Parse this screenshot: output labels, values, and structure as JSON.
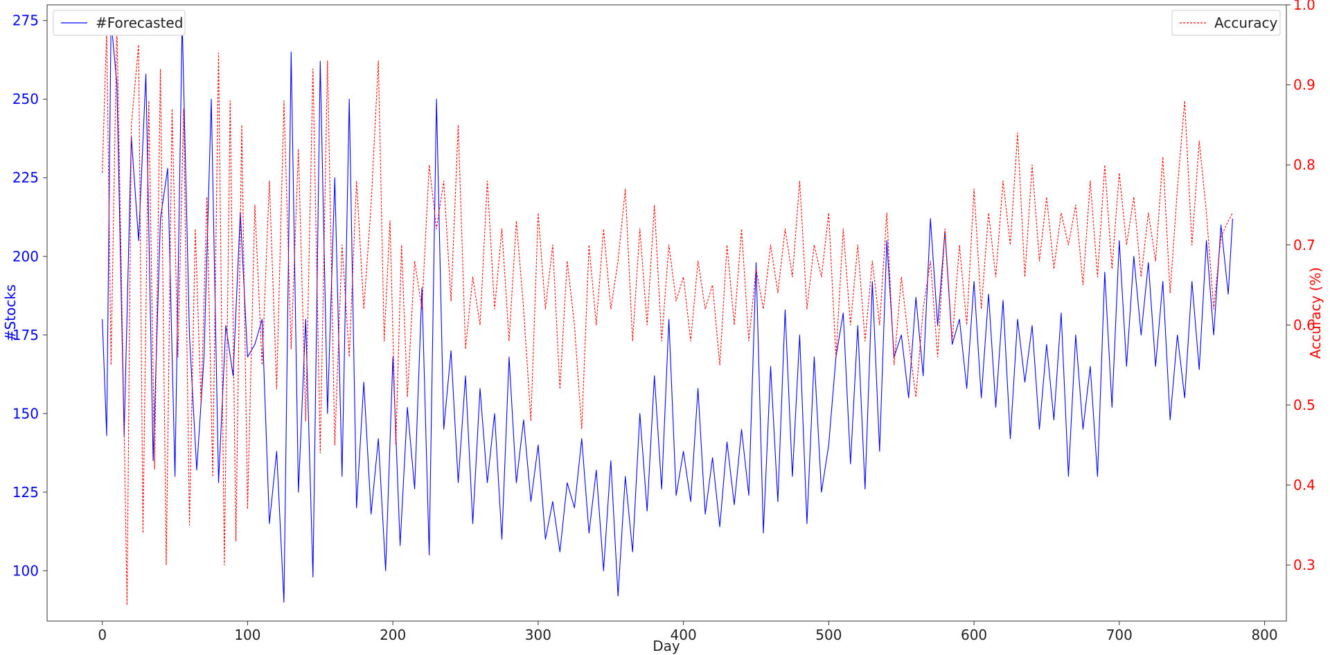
{
  "chart_data": {
    "type": "line",
    "title": "",
    "xlabel": "Day",
    "ylabel_left": "#Stocks",
    "ylabel_right": "Accuracy (%)",
    "xlim": [
      -38,
      815
    ],
    "ylim_left": [
      84,
      280
    ],
    "ylim_right": [
      0.23,
      1.0
    ],
    "x_ticks": [
      0,
      100,
      200,
      300,
      400,
      500,
      600,
      700,
      800
    ],
    "y_left_ticks": [
      100,
      125,
      150,
      175,
      200,
      225,
      250,
      275
    ],
    "y_right_ticks": [
      0.3,
      0.4,
      0.5,
      0.6,
      0.7,
      0.8,
      0.9,
      1.0
    ],
    "grid": false,
    "series": [
      {
        "name": "#Forecasted",
        "axis": "left",
        "color": "#0000ff",
        "style": "solid",
        "legend_position": "top-left",
        "points": [
          [
            0,
            180
          ],
          [
            3,
            143
          ],
          [
            6,
            275
          ],
          [
            10,
            255
          ],
          [
            15,
            143
          ],
          [
            20,
            238
          ],
          [
            25,
            205
          ],
          [
            30,
            258
          ],
          [
            35,
            135
          ],
          [
            40,
            212
          ],
          [
            45,
            228
          ],
          [
            50,
            130
          ],
          [
            55,
            275
          ],
          [
            60,
            175
          ],
          [
            65,
            132
          ],
          [
            70,
            168
          ],
          [
            75,
            250
          ],
          [
            80,
            128
          ],
          [
            85,
            178
          ],
          [
            90,
            162
          ],
          [
            95,
            214
          ],
          [
            100,
            168
          ],
          [
            105,
            172
          ],
          [
            110,
            180
          ],
          [
            115,
            115
          ],
          [
            120,
            138
          ],
          [
            125,
            90
          ],
          [
            130,
            265
          ],
          [
            135,
            125
          ],
          [
            140,
            180
          ],
          [
            145,
            98
          ],
          [
            150,
            262
          ],
          [
            155,
            150
          ],
          [
            160,
            225
          ],
          [
            165,
            130
          ],
          [
            170,
            250
          ],
          [
            175,
            120
          ],
          [
            180,
            160
          ],
          [
            185,
            118
          ],
          [
            190,
            142
          ],
          [
            195,
            100
          ],
          [
            200,
            168
          ],
          [
            205,
            108
          ],
          [
            210,
            152
          ],
          [
            215,
            126
          ],
          [
            220,
            190
          ],
          [
            225,
            105
          ],
          [
            230,
            250
          ],
          [
            235,
            145
          ],
          [
            240,
            170
          ],
          [
            245,
            128
          ],
          [
            250,
            162
          ],
          [
            255,
            115
          ],
          [
            260,
            158
          ],
          [
            265,
            128
          ],
          [
            270,
            150
          ],
          [
            275,
            110
          ],
          [
            280,
            168
          ],
          [
            285,
            128
          ],
          [
            290,
            148
          ],
          [
            295,
            122
          ],
          [
            300,
            140
          ],
          [
            305,
            110
          ],
          [
            310,
            122
          ],
          [
            315,
            106
          ],
          [
            320,
            128
          ],
          [
            325,
            120
          ],
          [
            330,
            142
          ],
          [
            335,
            112
          ],
          [
            340,
            132
          ],
          [
            345,
            100
          ],
          [
            350,
            135
          ],
          [
            355,
            92
          ],
          [
            360,
            130
          ],
          [
            365,
            106
          ],
          [
            370,
            150
          ],
          [
            375,
            119
          ],
          [
            380,
            162
          ],
          [
            385,
            126
          ],
          [
            390,
            180
          ],
          [
            395,
            124
          ],
          [
            400,
            138
          ],
          [
            405,
            122
          ],
          [
            410,
            158
          ],
          [
            415,
            118
          ],
          [
            420,
            136
          ],
          [
            425,
            114
          ],
          [
            430,
            141
          ],
          [
            435,
            121
          ],
          [
            440,
            145
          ],
          [
            445,
            124
          ],
          [
            450,
            198
          ],
          [
            455,
            112
          ],
          [
            460,
            165
          ],
          [
            465,
            122
          ],
          [
            470,
            183
          ],
          [
            475,
            130
          ],
          [
            480,
            175
          ],
          [
            485,
            115
          ],
          [
            490,
            168
          ],
          [
            495,
            125
          ],
          [
            500,
            140
          ],
          [
            505,
            168
          ],
          [
            510,
            182
          ],
          [
            515,
            134
          ],
          [
            520,
            178
          ],
          [
            525,
            126
          ],
          [
            530,
            192
          ],
          [
            535,
            138
          ],
          [
            540,
            205
          ],
          [
            545,
            168
          ],
          [
            550,
            175
          ],
          [
            555,
            155
          ],
          [
            560,
            187
          ],
          [
            565,
            162
          ],
          [
            570,
            212
          ],
          [
            575,
            178
          ],
          [
            580,
            208
          ],
          [
            585,
            172
          ],
          [
            590,
            180
          ],
          [
            595,
            158
          ],
          [
            600,
            192
          ],
          [
            605,
            155
          ],
          [
            610,
            188
          ],
          [
            615,
            152
          ],
          [
            620,
            186
          ],
          [
            625,
            142
          ],
          [
            630,
            180
          ],
          [
            635,
            160
          ],
          [
            640,
            178
          ],
          [
            645,
            145
          ],
          [
            650,
            172
          ],
          [
            655,
            148
          ],
          [
            660,
            182
          ],
          [
            665,
            130
          ],
          [
            670,
            175
          ],
          [
            675,
            145
          ],
          [
            680,
            165
          ],
          [
            685,
            130
          ],
          [
            690,
            195
          ],
          [
            695,
            152
          ],
          [
            700,
            205
          ],
          [
            705,
            165
          ],
          [
            710,
            200
          ],
          [
            715,
            175
          ],
          [
            720,
            198
          ],
          [
            725,
            165
          ],
          [
            730,
            192
          ],
          [
            735,
            148
          ],
          [
            740,
            175
          ],
          [
            745,
            155
          ],
          [
            750,
            192
          ],
          [
            755,
            164
          ],
          [
            760,
            205
          ],
          [
            765,
            175
          ],
          [
            770,
            210
          ],
          [
            775,
            188
          ],
          [
            778,
            212
          ]
        ]
      },
      {
        "name": "Accuracy",
        "axis": "right",
        "color": "#ff0000",
        "style": "dashed",
        "legend_position": "top-right",
        "points": [
          [
            0,
            0.79
          ],
          [
            3,
            0.97
          ],
          [
            6,
            0.55
          ],
          [
            10,
            0.98
          ],
          [
            15,
            0.47
          ],
          [
            17,
            0.25
          ],
          [
            20,
            0.85
          ],
          [
            25,
            0.95
          ],
          [
            28,
            0.34
          ],
          [
            32,
            0.88
          ],
          [
            36,
            0.42
          ],
          [
            40,
            0.92
          ],
          [
            44,
            0.3
          ],
          [
            48,
            0.87
          ],
          [
            52,
            0.56
          ],
          [
            56,
            0.87
          ],
          [
            60,
            0.35
          ],
          [
            64,
            0.72
          ],
          [
            68,
            0.5
          ],
          [
            72,
            0.76
          ],
          [
            76,
            0.41
          ],
          [
            80,
            0.94
          ],
          [
            84,
            0.3
          ],
          [
            88,
            0.88
          ],
          [
            92,
            0.33
          ],
          [
            96,
            0.85
          ],
          [
            100,
            0.37
          ],
          [
            105,
            0.75
          ],
          [
            110,
            0.55
          ],
          [
            115,
            0.78
          ],
          [
            120,
            0.52
          ],
          [
            125,
            0.88
          ],
          [
            130,
            0.57
          ],
          [
            135,
            0.82
          ],
          [
            140,
            0.48
          ],
          [
            145,
            0.92
          ],
          [
            150,
            0.44
          ],
          [
            155,
            0.93
          ],
          [
            160,
            0.45
          ],
          [
            165,
            0.7
          ],
          [
            170,
            0.56
          ],
          [
            175,
            0.78
          ],
          [
            180,
            0.62
          ],
          [
            185,
            0.75
          ],
          [
            190,
            0.93
          ],
          [
            194,
            0.58
          ],
          [
            198,
            0.73
          ],
          [
            202,
            0.45
          ],
          [
            206,
            0.7
          ],
          [
            210,
            0.51
          ],
          [
            215,
            0.68
          ],
          [
            220,
            0.62
          ],
          [
            225,
            0.8
          ],
          [
            230,
            0.72
          ],
          [
            235,
            0.78
          ],
          [
            240,
            0.63
          ],
          [
            245,
            0.85
          ],
          [
            250,
            0.57
          ],
          [
            255,
            0.66
          ],
          [
            260,
            0.6
          ],
          [
            265,
            0.78
          ],
          [
            270,
            0.62
          ],
          [
            275,
            0.72
          ],
          [
            280,
            0.58
          ],
          [
            285,
            0.73
          ],
          [
            290,
            0.62
          ],
          [
            295,
            0.48
          ],
          [
            300,
            0.74
          ],
          [
            305,
            0.62
          ],
          [
            310,
            0.7
          ],
          [
            315,
            0.52
          ],
          [
            320,
            0.68
          ],
          [
            325,
            0.6
          ],
          [
            330,
            0.47
          ],
          [
            335,
            0.7
          ],
          [
            340,
            0.6
          ],
          [
            345,
            0.72
          ],
          [
            350,
            0.62
          ],
          [
            355,
            0.68
          ],
          [
            360,
            0.77
          ],
          [
            365,
            0.58
          ],
          [
            370,
            0.72
          ],
          [
            375,
            0.6
          ],
          [
            380,
            0.75
          ],
          [
            385,
            0.58
          ],
          [
            390,
            0.7
          ],
          [
            395,
            0.63
          ],
          [
            400,
            0.66
          ],
          [
            405,
            0.58
          ],
          [
            410,
            0.68
          ],
          [
            415,
            0.62
          ],
          [
            420,
            0.65
          ],
          [
            425,
            0.55
          ],
          [
            430,
            0.7
          ],
          [
            435,
            0.6
          ],
          [
            440,
            0.72
          ],
          [
            445,
            0.58
          ],
          [
            450,
            0.67
          ],
          [
            455,
            0.62
          ],
          [
            460,
            0.7
          ],
          [
            465,
            0.64
          ],
          [
            470,
            0.72
          ],
          [
            475,
            0.66
          ],
          [
            480,
            0.78
          ],
          [
            485,
            0.62
          ],
          [
            490,
            0.7
          ],
          [
            495,
            0.66
          ],
          [
            500,
            0.74
          ],
          [
            505,
            0.56
          ],
          [
            510,
            0.72
          ],
          [
            515,
            0.6
          ],
          [
            520,
            0.7
          ],
          [
            525,
            0.58
          ],
          [
            530,
            0.68
          ],
          [
            535,
            0.6
          ],
          [
            540,
            0.74
          ],
          [
            545,
            0.55
          ],
          [
            550,
            0.66
          ],
          [
            555,
            0.58
          ],
          [
            560,
            0.51
          ],
          [
            565,
            0.62
          ],
          [
            570,
            0.68
          ],
          [
            575,
            0.56
          ],
          [
            580,
            0.72
          ],
          [
            585,
            0.58
          ],
          [
            590,
            0.7
          ],
          [
            595,
            0.6
          ],
          [
            600,
            0.77
          ],
          [
            605,
            0.62
          ],
          [
            610,
            0.74
          ],
          [
            615,
            0.66
          ],
          [
            620,
            0.78
          ],
          [
            625,
            0.7
          ],
          [
            630,
            0.84
          ],
          [
            635,
            0.66
          ],
          [
            640,
            0.8
          ],
          [
            645,
            0.68
          ],
          [
            650,
            0.76
          ],
          [
            655,
            0.67
          ],
          [
            660,
            0.74
          ],
          [
            665,
            0.7
          ],
          [
            670,
            0.75
          ],
          [
            675,
            0.65
          ],
          [
            680,
            0.78
          ],
          [
            685,
            0.66
          ],
          [
            690,
            0.8
          ],
          [
            695,
            0.67
          ],
          [
            700,
            0.79
          ],
          [
            705,
            0.7
          ],
          [
            710,
            0.76
          ],
          [
            715,
            0.66
          ],
          [
            720,
            0.74
          ],
          [
            725,
            0.68
          ],
          [
            730,
            0.81
          ],
          [
            735,
            0.64
          ],
          [
            740,
            0.77
          ],
          [
            745,
            0.88
          ],
          [
            750,
            0.7
          ],
          [
            755,
            0.83
          ],
          [
            760,
            0.74
          ],
          [
            765,
            0.62
          ],
          [
            770,
            0.71
          ],
          [
            775,
            0.73
          ],
          [
            778,
            0.74
          ]
        ]
      }
    ]
  }
}
